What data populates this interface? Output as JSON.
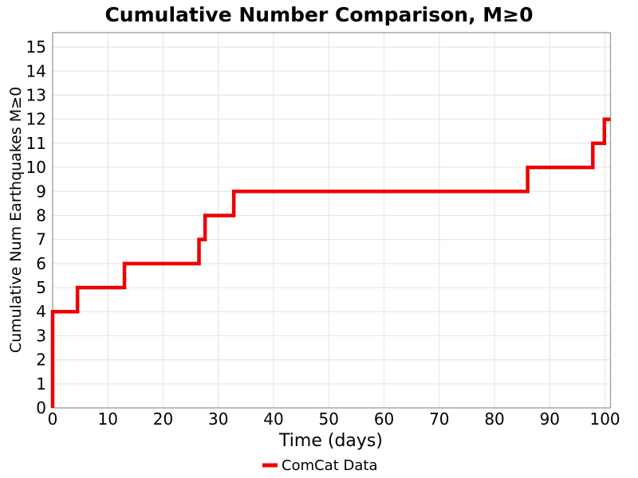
{
  "figure": {
    "background": "#ffffff"
  },
  "chart_data": {
    "type": "line",
    "subtype": "step-post",
    "title": "Cumulative Number Comparison, M≥0",
    "xlabel": "Time (days)",
    "ylabel": "Cumulative Num Earthquakes M≥0",
    "xlim": [
      0,
      101
    ],
    "ylim": [
      0,
      15.6
    ],
    "xticks": [
      0,
      10,
      20,
      30,
      40,
      50,
      60,
      70,
      80,
      90,
      100
    ],
    "yticks": [
      0,
      1,
      2,
      3,
      4,
      5,
      6,
      7,
      8,
      9,
      10,
      11,
      12,
      13,
      14,
      15
    ],
    "grid": true,
    "grid_color": "#e7e7e7",
    "box_color": "#9a9a9a",
    "text_color": "#000000",
    "legend": {
      "position": "bottom-center",
      "entries": [
        {
          "label": "ComCat Data",
          "color": "#ee0000"
        }
      ]
    },
    "series": [
      {
        "name": "ComCat Data",
        "color": "#ee0000",
        "line_width": 4.5,
        "points": [
          [
            0,
            0
          ],
          [
            0,
            4
          ],
          [
            4.5,
            4
          ],
          [
            4.5,
            5
          ],
          [
            13,
            5
          ],
          [
            13,
            6
          ],
          [
            26.5,
            6
          ],
          [
            26.5,
            7
          ],
          [
            27.6,
            7
          ],
          [
            27.6,
            8
          ],
          [
            32.8,
            8
          ],
          [
            32.8,
            9
          ],
          [
            86,
            9
          ],
          [
            86,
            10
          ],
          [
            97.8,
            10
          ],
          [
            97.8,
            11
          ],
          [
            99.9,
            11
          ],
          [
            99.9,
            12
          ],
          [
            101,
            12
          ]
        ]
      }
    ],
    "event_days_cumulative_counts": {
      "days": [
        0,
        0,
        0,
        0,
        4.5,
        13,
        26.5,
        27.6,
        32.8,
        86,
        97.8,
        99.9
      ],
      "count": [
        1,
        2,
        3,
        4,
        5,
        6,
        7,
        8,
        9,
        10,
        11,
        12
      ]
    }
  }
}
